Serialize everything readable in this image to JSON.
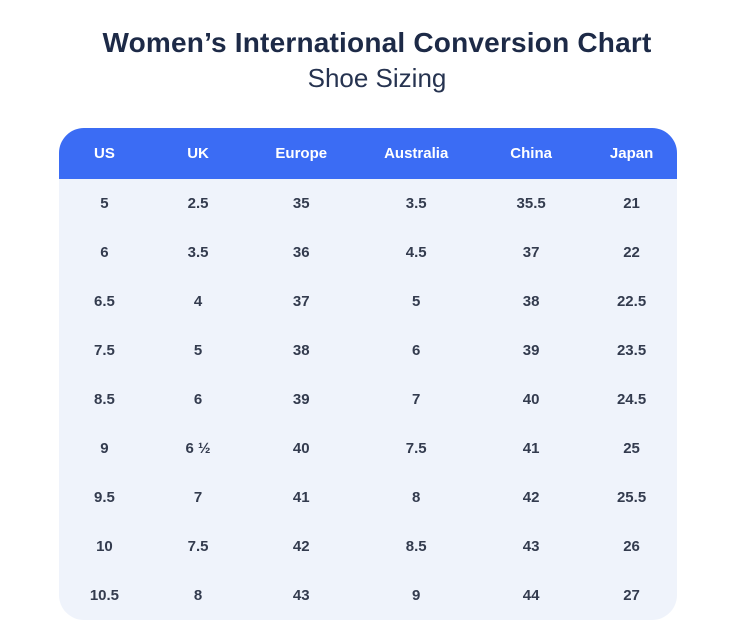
{
  "header": {
    "title": "Women’s International Conversion Chart",
    "subtitle": "Shoe Sizing"
  },
  "chart_data": {
    "type": "table",
    "title": "Women’s International Conversion Chart",
    "subtitle": "Shoe Sizing",
    "columns": [
      "US",
      "UK",
      "Europe",
      "Australia",
      "China",
      "Japan"
    ],
    "rows": [
      [
        "5",
        "2.5",
        "35",
        "3.5",
        "35.5",
        "21"
      ],
      [
        "6",
        "3.5",
        "36",
        "4.5",
        "37",
        "22"
      ],
      [
        "6.5",
        "4",
        "37",
        "5",
        "38",
        "22.5"
      ],
      [
        "7.5",
        "5",
        "38",
        "6",
        "39",
        "23.5"
      ],
      [
        "8.5",
        "6",
        "39",
        "7",
        "40",
        "24.5"
      ],
      [
        "9",
        "6 ½",
        "40",
        "7.5",
        "41",
        "25"
      ],
      [
        "9.5",
        "7",
        "41",
        "8",
        "42",
        "25.5"
      ],
      [
        "10",
        "7.5",
        "42",
        "8.5",
        "43",
        "26"
      ],
      [
        "10.5",
        "8",
        "43",
        "9",
        "44",
        "27"
      ]
    ]
  },
  "colors": {
    "header_bg": "#3b6cf4",
    "header_text": "#ffffff",
    "body_bg": "#eff3fb",
    "cell_text": "#333b4e",
    "title_text": "#1d2a47"
  }
}
